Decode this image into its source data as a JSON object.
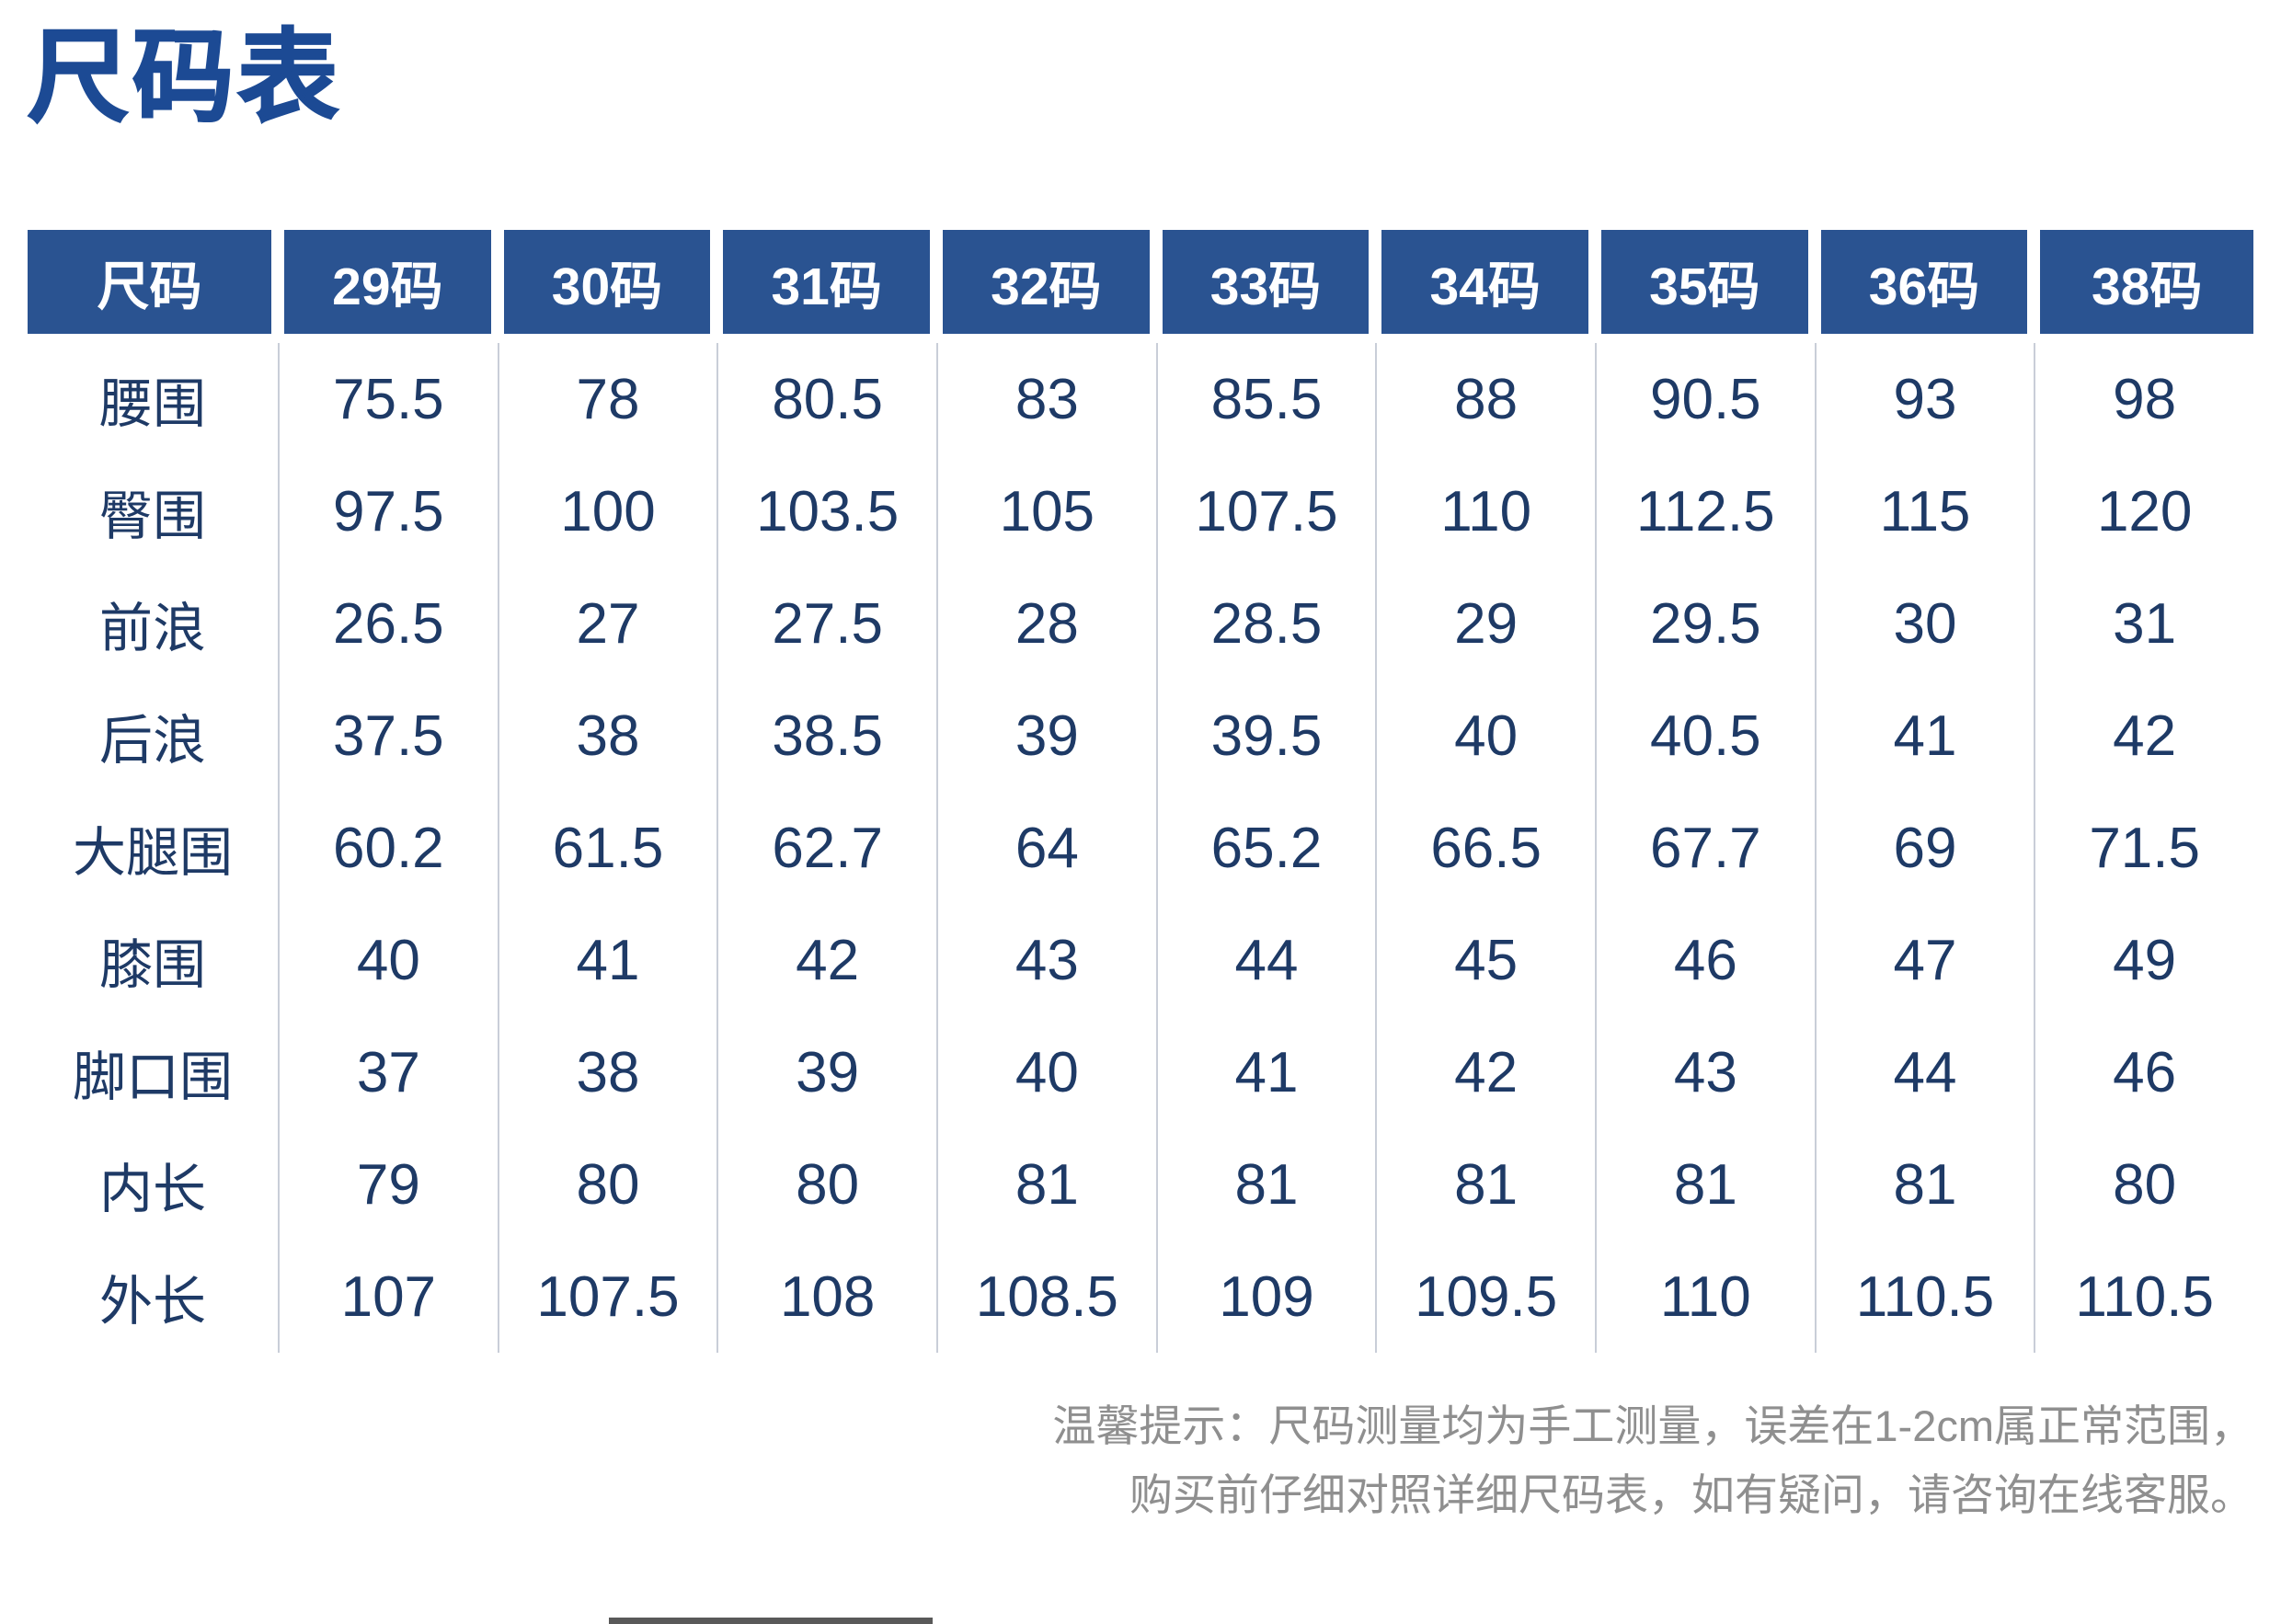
{
  "title": "尺码表",
  "table": {
    "header": [
      "尺码",
      "29码",
      "30码",
      "31码",
      "32码",
      "33码",
      "34码",
      "35码",
      "36码",
      "38码"
    ],
    "rows": [
      {
        "label": "腰围",
        "values": [
          "75.5",
          "78",
          "80.5",
          "83",
          "85.5",
          "88",
          "90.5",
          "93",
          "98"
        ]
      },
      {
        "label": "臀围",
        "values": [
          "97.5",
          "100",
          "103.5",
          "105",
          "107.5",
          "110",
          "112.5",
          "115",
          "120"
        ]
      },
      {
        "label": "前浪",
        "values": [
          "26.5",
          "27",
          "27.5",
          "28",
          "28.5",
          "29",
          "29.5",
          "30",
          "31"
        ]
      },
      {
        "label": "后浪",
        "values": [
          "37.5",
          "38",
          "38.5",
          "39",
          "39.5",
          "40",
          "40.5",
          "41",
          "42"
        ]
      },
      {
        "label": "大腿围",
        "values": [
          "60.2",
          "61.5",
          "62.7",
          "64",
          "65.2",
          "66.5",
          "67.7",
          "69",
          "71.5"
        ]
      },
      {
        "label": "膝围",
        "values": [
          "40",
          "41",
          "42",
          "43",
          "44",
          "45",
          "46",
          "47",
          "49"
        ]
      },
      {
        "label": "脚口围",
        "values": [
          "37",
          "38",
          "39",
          "40",
          "41",
          "42",
          "43",
          "44",
          "46"
        ]
      },
      {
        "label": "内长",
        "values": [
          "79",
          "80",
          "80",
          "81",
          "81",
          "81",
          "81",
          "81",
          "80"
        ]
      },
      {
        "label": "外长",
        "values": [
          "107",
          "107.5",
          "108",
          "108.5",
          "109",
          "109.5",
          "110",
          "110.5",
          "110.5"
        ]
      }
    ]
  },
  "note": {
    "line1": "温馨提示：尺码测量均为手工测量，误差在1-2cm属正常范围，",
    "line2": "购买前仔细对照详细尺码表，如有疑问，请咨询在线客服。"
  },
  "colors": {
    "header_bg": "#2a5391",
    "title": "#1c4a94",
    "value": "#1e3a66",
    "note": "#8f8f8f",
    "divider": "#c9ced8",
    "page_bg": "#ffffff"
  }
}
